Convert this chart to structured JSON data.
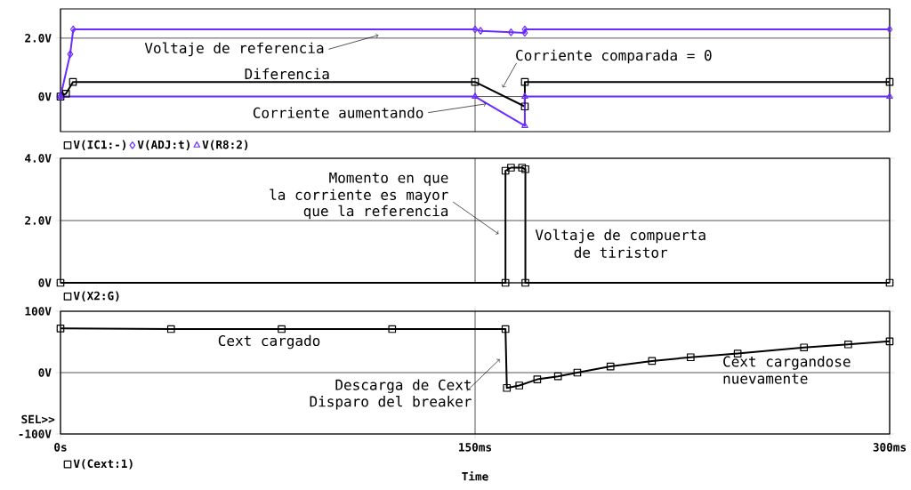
{
  "chart_data": [
    {
      "type": "line",
      "xlim": [
        0,
        300
      ],
      "xticks": [
        {
          "value": 0,
          "label": null
        },
        {
          "value": 150,
          "label": null
        },
        {
          "value": 300,
          "label": null
        }
      ],
      "ylim": [
        -1.2,
        3.0
      ],
      "yticks": [
        {
          "value": 2,
          "label": "2.0V"
        },
        {
          "value": 0,
          "label": "0V"
        }
      ],
      "grid": true,
      "legend": "bottom left",
      "tick_labels": "y",
      "series": [
        {
          "name": "V(IC1:-)",
          "color": "#000000",
          "marker": "square",
          "x": [
            0,
            2,
            4.5,
            150,
            168,
            168,
            300
          ],
          "values": [
            0,
            0.1,
            0.5,
            0.5,
            -0.34,
            0.5,
            0.5
          ]
        },
        {
          "name": "V(ADJ:t)",
          "color": "#6a2cff",
          "marker": "diamond",
          "x": [
            0,
            3.5,
            4.6,
            150,
            152,
            163,
            168,
            168,
            300
          ],
          "values": [
            0,
            1.45,
            2.3,
            2.3,
            2.25,
            2.2,
            2.18,
            2.3,
            2.3
          ]
        },
        {
          "name": "V(R8:2)",
          "color": "#6a2cff",
          "marker": "triangle",
          "x": [
            0,
            150,
            168,
            168,
            300
          ],
          "values": [
            0,
            0,
            -1.0,
            0,
            0
          ]
        }
      ],
      "annotations": [
        {
          "text": "Voltaje de referencia",
          "x": 115,
          "y": 2.1
        },
        "Diferencia",
        {
          "text": "Corriente comparada = 0",
          "x": 160,
          "y": 0.31
        },
        {
          "text": "Corriente aumentando",
          "x": 154,
          "y": -0.25
        }
      ]
    },
    {
      "type": "line",
      "xlim": [
        0,
        300
      ],
      "xticks": [
        {
          "value": 0,
          "label": null
        },
        {
          "value": 150,
          "label": null
        },
        {
          "value": 300,
          "label": null
        }
      ],
      "ylim": [
        0,
        4
      ],
      "yticks": [
        {
          "value": 4,
          "label": "4.0V"
        },
        {
          "value": 2,
          "label": "2.0V"
        },
        {
          "value": 0,
          "label": "0V"
        }
      ],
      "grid": true,
      "legend": "bottom left",
      "tick_labels": "y",
      "series": [
        {
          "name": "V(X2:G)",
          "color": "#000000",
          "marker": "square",
          "x": [
            0,
            161,
            161,
            163,
            167,
            168.2,
            168.2,
            300
          ],
          "values": [
            0,
            0,
            3.6,
            3.7,
            3.7,
            3.65,
            0,
            0
          ]
        }
      ],
      "annotations": [
        "Momento en que",
        {
          "text": "la corriente es mayor",
          "x": 158.5,
          "y": 1.57
        },
        "que la referencia",
        "Voltaje de compuerta",
        "de tiristor"
      ]
    },
    {
      "type": "line",
      "xlim": [
        0,
        300
      ],
      "xticks": [
        {
          "value": 0,
          "label": "0s"
        },
        {
          "value": 150,
          "label": "150ms"
        },
        {
          "value": 300,
          "label": "300ms"
        }
      ],
      "ylim": [
        -100,
        100
      ],
      "yticks": [
        {
          "value": 100,
          "label": "100V"
        },
        {
          "value": 0,
          "label": "0V"
        },
        {
          "value": -100,
          "label": "-100V"
        }
      ],
      "grid": true,
      "legend": "bottom left",
      "xlabel": "Time",
      "series": [
        {
          "name": "V(Cext:1)",
          "color": "#000000",
          "marker": "square",
          "x": [
            0,
            40,
            80,
            120,
            161,
            161.5,
            166,
            172.5,
            180,
            187,
            199,
            214,
            228,
            245,
            269,
            285,
            300
          ],
          "values": [
            72,
            71,
            71,
            71,
            71,
            -25,
            -21,
            -11,
            -6,
            0,
            10,
            19,
            25,
            31,
            41,
            46,
            51
          ]
        }
      ],
      "annotations": [
        "Cext cargado",
        {
          "text": "Descarga de Cext",
          "x": 158.9,
          "y": 21.8
        },
        "Disparo del breaker",
        "Cext cargandose",
        "nuevamente",
        "SEL>>"
      ]
    }
  ]
}
